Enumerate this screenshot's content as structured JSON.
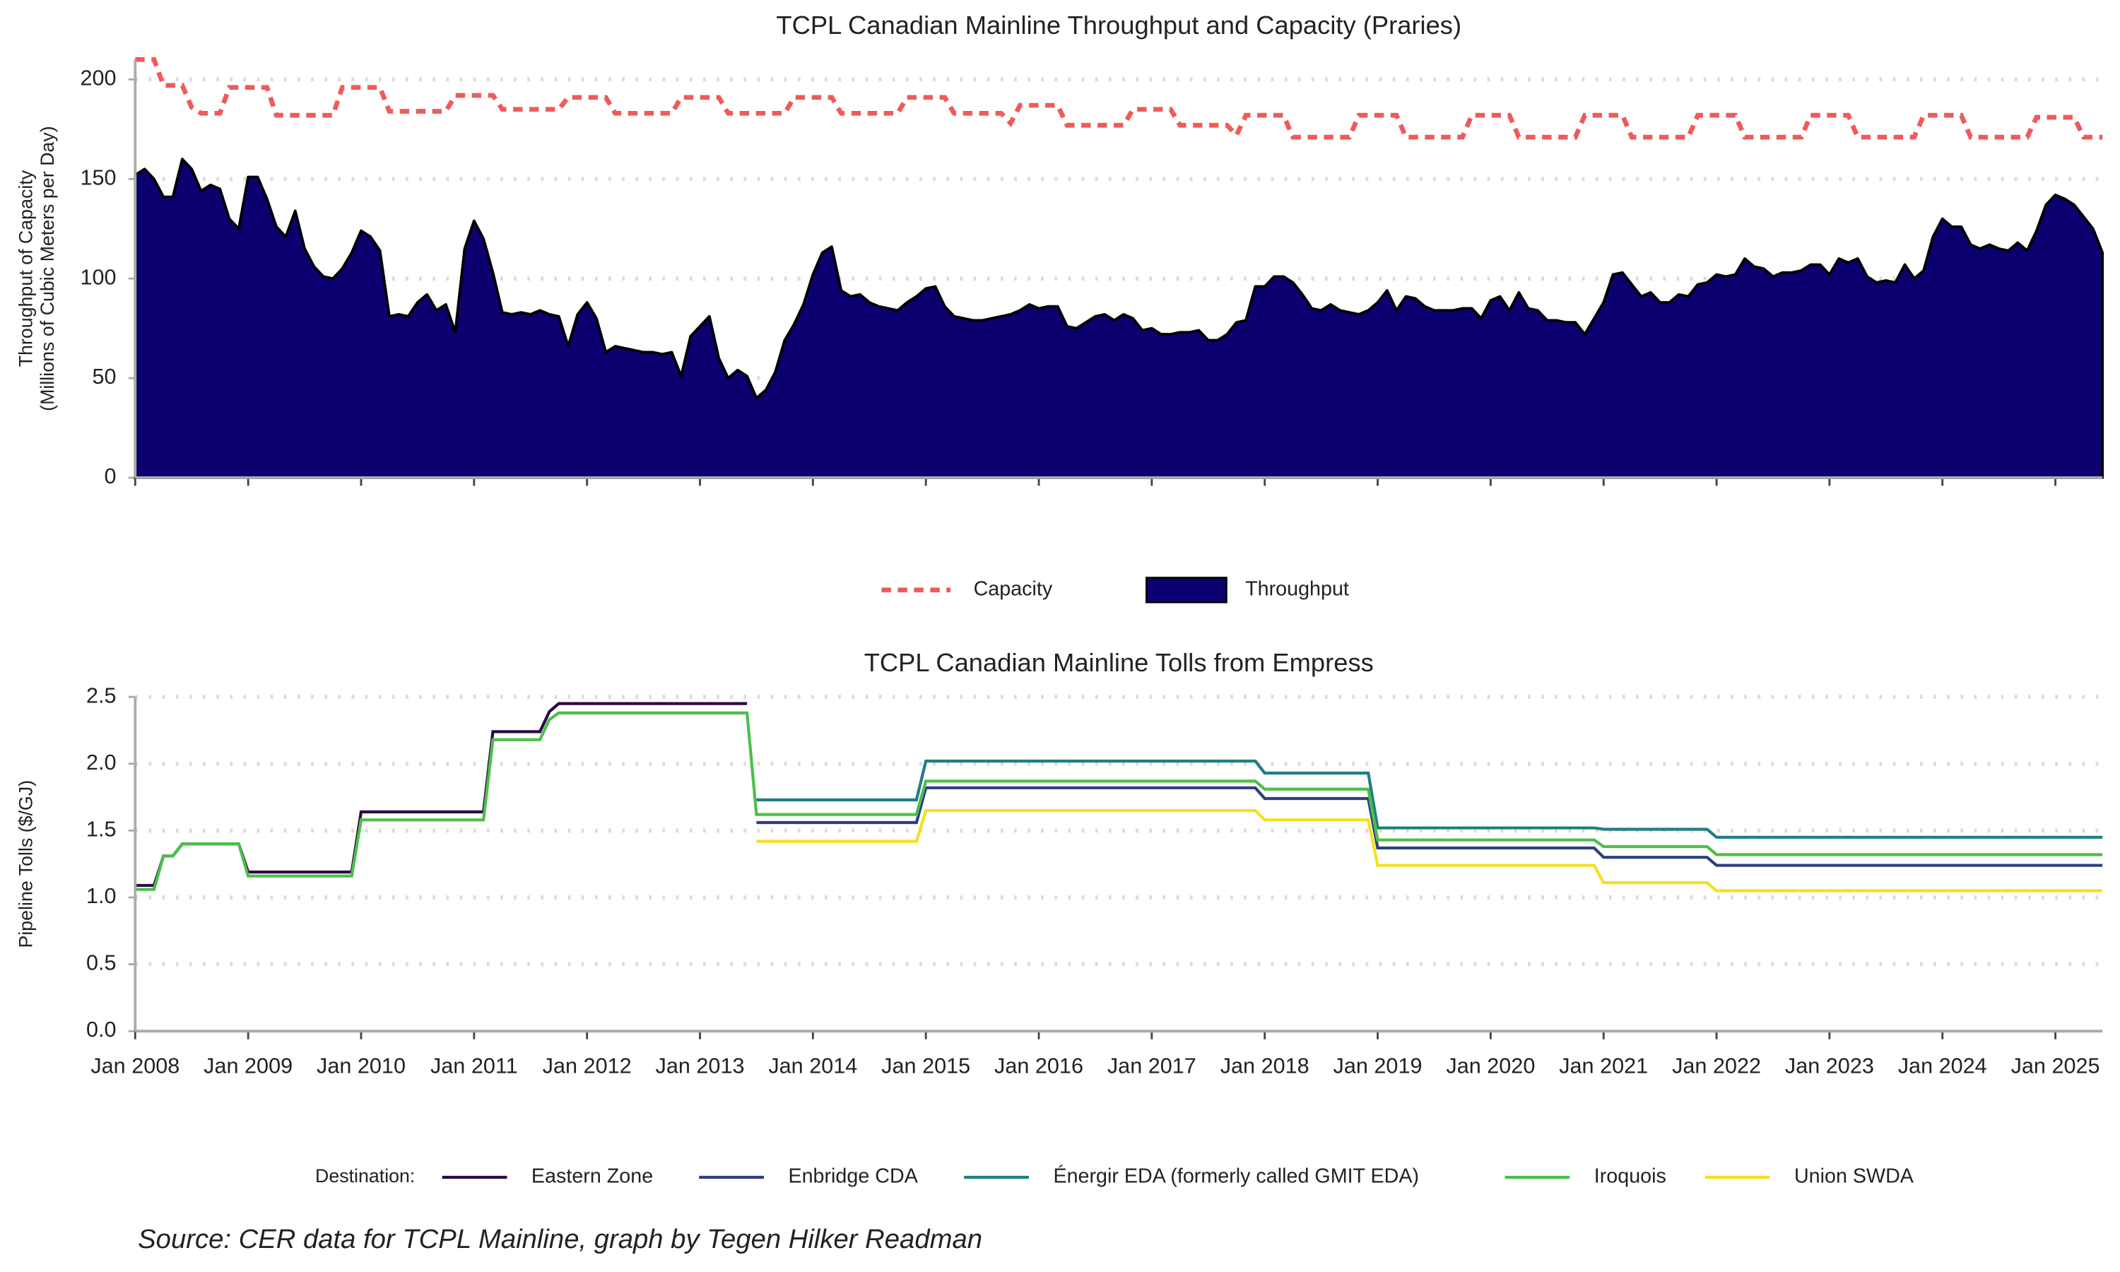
{
  "chart_data": [
    {
      "type": "area",
      "title": "TCPL Canadian Mainline Throughput and Capacity (Praries)",
      "ylabel": [
        "Throughput of Capacity",
        "(Millions of Cubic Meters per Day)"
      ],
      "x": [
        "2008-01",
        "2008-02",
        "2008-03",
        "2008-04",
        "2008-05",
        "2008-06",
        "2008-07",
        "2008-08",
        "2008-09",
        "2008-10",
        "2008-11",
        "2008-12",
        "2009-01",
        "2009-02",
        "2009-03",
        "2009-04",
        "2009-05",
        "2009-06",
        "2009-07",
        "2009-08",
        "2009-09",
        "2009-10",
        "2009-11",
        "2009-12",
        "2010-01",
        "2010-02",
        "2010-03",
        "2010-04",
        "2010-05",
        "2010-06",
        "2010-07",
        "2010-08",
        "2010-09",
        "2010-10",
        "2010-11",
        "2010-12",
        "2011-01",
        "2011-02",
        "2011-03",
        "2011-04",
        "2011-05",
        "2011-06",
        "2011-07",
        "2011-08",
        "2011-09",
        "2011-10",
        "2011-11",
        "2011-12",
        "2012-01",
        "2012-02",
        "2012-03",
        "2012-04",
        "2012-05",
        "2012-06",
        "2012-07",
        "2012-08",
        "2012-09",
        "2012-10",
        "2012-11",
        "2012-12",
        "2013-01",
        "2013-02",
        "2013-03",
        "2013-04",
        "2013-05",
        "2013-06",
        "2013-07",
        "2013-08",
        "2013-09",
        "2013-10",
        "2013-11",
        "2013-12",
        "2014-01",
        "2014-02",
        "2014-03",
        "2014-04",
        "2014-05",
        "2014-06",
        "2014-07",
        "2014-08",
        "2014-09",
        "2014-10",
        "2014-11",
        "2014-12",
        "2015-01",
        "2015-02",
        "2015-03",
        "2015-04",
        "2015-05",
        "2015-06",
        "2015-07",
        "2015-08",
        "2015-09",
        "2015-10",
        "2015-11",
        "2015-12",
        "2016-01",
        "2016-02",
        "2016-03",
        "2016-04",
        "2016-05",
        "2016-06",
        "2016-07",
        "2016-08",
        "2016-09",
        "2016-10",
        "2016-11",
        "2016-12",
        "2017-01",
        "2017-02",
        "2017-03",
        "2017-04",
        "2017-05",
        "2017-06",
        "2017-07",
        "2017-08",
        "2017-09",
        "2017-10",
        "2017-11",
        "2017-12",
        "2018-01",
        "2018-02",
        "2018-03",
        "2018-04",
        "2018-05",
        "2018-06",
        "2018-07",
        "2018-08",
        "2018-09",
        "2018-10",
        "2018-11",
        "2018-12",
        "2019-01",
        "2019-02",
        "2019-03",
        "2019-04",
        "2019-05",
        "2019-06",
        "2019-07",
        "2019-08",
        "2019-09",
        "2019-10",
        "2019-11",
        "2019-12",
        "2020-01",
        "2020-02",
        "2020-03",
        "2020-04",
        "2020-05",
        "2020-06",
        "2020-07",
        "2020-08",
        "2020-09",
        "2020-10",
        "2020-11",
        "2020-12",
        "2021-01",
        "2021-02",
        "2021-03",
        "2021-04",
        "2021-05",
        "2021-06",
        "2021-07",
        "2021-08",
        "2021-09",
        "2021-10",
        "2021-11",
        "2021-12",
        "2022-01",
        "2022-02",
        "2022-03",
        "2022-04",
        "2022-05",
        "2022-06",
        "2022-07",
        "2022-08",
        "2022-09",
        "2022-10",
        "2022-11",
        "2022-12",
        "2023-01",
        "2023-02",
        "2023-03",
        "2023-04",
        "2023-05",
        "2023-06",
        "2023-07",
        "2023-08",
        "2023-09",
        "2023-10",
        "2023-11",
        "2023-12",
        "2024-01",
        "2024-02",
        "2024-03",
        "2024-04",
        "2024-05",
        "2024-06",
        "2024-07",
        "2024-08",
        "2024-09",
        "2024-10",
        "2024-11",
        "2024-12",
        "2025-01",
        "2025-02",
        "2025-03",
        "2025-04",
        "2025-05",
        "2025-06"
      ],
      "series": [
        {
          "name": "Capacity",
          "type": "line",
          "dashed": true,
          "color": "#ef5a5a",
          "values": [
            210,
            210,
            210,
            197,
            197,
            197,
            186,
            183,
            183,
            183,
            196,
            196,
            196,
            196,
            196,
            182,
            182,
            182,
            182,
            182,
            182,
            182,
            196,
            196,
            196,
            196,
            196,
            184,
            184,
            184,
            184,
            184,
            184,
            184,
            192,
            192,
            192,
            192,
            192,
            185,
            185,
            185,
            185,
            185,
            185,
            185,
            191,
            191,
            191,
            191,
            191,
            183,
            183,
            183,
            183,
            183,
            183,
            183,
            191,
            191,
            191,
            191,
            191,
            183,
            183,
            183,
            183,
            183,
            183,
            183,
            191,
            191,
            191,
            191,
            191,
            183,
            183,
            183,
            183,
            183,
            183,
            183,
            191,
            191,
            191,
            191,
            191,
            183,
            183,
            183,
            183,
            183,
            183,
            178,
            187,
            187,
            187,
            187,
            187,
            177,
            177,
            177,
            177,
            177,
            177,
            177,
            185,
            185,
            185,
            185,
            185,
            177,
            177,
            177,
            177,
            177,
            177,
            172,
            182,
            182,
            182,
            182,
            182,
            171,
            171,
            171,
            171,
            171,
            171,
            171,
            182,
            182,
            182,
            182,
            182,
            171,
            171,
            171,
            171,
            171,
            171,
            171,
            182,
            182,
            182,
            182,
            182,
            171,
            171,
            171,
            171,
            171,
            171,
            171,
            182,
            182,
            182,
            182,
            182,
            171,
            171,
            171,
            171,
            171,
            171,
            171,
            182,
            182,
            182,
            182,
            182,
            171,
            171,
            171,
            171,
            171,
            171,
            171,
            182,
            182,
            182,
            182,
            182,
            171,
            171,
            171,
            171,
            171,
            171,
            171,
            182,
            182,
            182,
            182,
            182,
            171,
            171,
            171,
            171,
            171,
            171,
            171,
            181,
            181,
            181,
            181,
            181,
            171,
            171,
            171
          ]
        },
        {
          "name": "Throughput",
          "type": "area",
          "color": "#0c0070",
          "values": [
            152,
            155,
            150,
            141,
            141,
            160,
            155,
            144,
            147,
            145,
            130,
            125,
            151,
            151,
            140,
            126,
            121,
            134,
            115,
            106,
            101,
            100,
            105,
            113,
            124,
            121,
            114,
            81,
            82,
            81,
            88,
            92,
            84,
            87,
            73,
            115,
            129,
            120,
            103,
            83,
            82,
            83,
            82,
            84,
            82,
            81,
            66,
            82,
            88,
            80,
            63,
            66,
            65,
            64,
            63,
            63,
            62,
            63,
            51,
            71,
            76,
            81,
            60,
            50,
            54,
            51,
            40,
            44,
            53,
            69,
            77,
            87,
            102,
            113,
            116,
            94,
            91,
            92,
            88,
            86,
            85,
            84,
            88,
            91,
            95,
            96,
            86,
            81,
            80,
            79,
            79,
            80,
            81,
            82,
            84,
            87,
            85,
            86,
            86,
            76,
            75,
            78,
            81,
            82,
            79,
            82,
            80,
            74,
            75,
            72,
            72,
            73,
            73,
            74,
            69,
            69,
            72,
            78,
            79,
            96,
            96,
            101,
            101,
            98,
            92,
            85,
            84,
            87,
            84,
            83,
            82,
            84,
            88,
            94,
            84,
            91,
            90,
            86,
            84,
            84,
            84,
            85,
            85,
            80,
            89,
            91,
            84,
            93,
            85,
            84,
            79,
            79,
            78,
            78,
            72,
            80,
            88,
            102,
            103,
            97,
            91,
            93,
            88,
            88,
            92,
            91,
            97,
            98,
            102,
            101,
            102,
            110,
            106,
            105,
            101,
            103,
            103,
            104,
            107,
            107,
            102,
            110,
            108,
            110,
            101,
            98,
            99,
            98,
            107,
            100,
            104,
            121,
            130,
            126,
            126,
            117,
            115,
            117,
            115,
            114,
            118,
            114,
            124,
            137,
            142,
            140,
            137,
            131,
            125,
            113
          ]
        }
      ],
      "xlim": [
        "2008-01",
        "2025-06"
      ],
      "xticks": [
        "2008-01",
        "2009-01",
        "2010-01",
        "2011-01",
        "2012-01",
        "2013-01",
        "2014-01",
        "2015-01",
        "2016-01",
        "2017-01",
        "2018-01",
        "2019-01",
        "2020-01",
        "2021-01",
        "2022-01",
        "2023-01",
        "2024-01",
        "2025-01"
      ],
      "ylim": [
        0,
        210
      ],
      "yticks": [
        0,
        50,
        100,
        150,
        200
      ],
      "grid": true,
      "legend": "bottom"
    },
    {
      "type": "line",
      "title": "TCPL Canadian Mainline Tolls from Empress",
      "ylabel": [
        "Pipeline Tolls ($/GJ)"
      ],
      "legend_title": "Destination:",
      "x": [
        "2008-01",
        "2008-03",
        "2008-04",
        "2008-05",
        "2008-06",
        "2008-12",
        "2009-01",
        "2009-12",
        "2010-01",
        "2011-02",
        "2011-03",
        "2011-08",
        "2011-09",
        "2011-10",
        "2013-06",
        "2013-07",
        "2014-12",
        "2015-01",
        "2017-12",
        "2018-01",
        "2018-12",
        "2019-01",
        "2020-12",
        "2021-01",
        "2021-12",
        "2022-01",
        "2025-06"
      ],
      "series": [
        {
          "name": "Eastern Zone",
          "color": "#2d0b45",
          "values": [
            1.09,
            1.09,
            1.31,
            1.31,
            1.4,
            1.4,
            1.19,
            1.19,
            1.64,
            1.64,
            2.24,
            2.24,
            2.39,
            2.45,
            2.45,
            null,
            null,
            null,
            null,
            null,
            null,
            null,
            null,
            null,
            null,
            null,
            null
          ]
        },
        {
          "name": "Enbridge CDA",
          "color": "#2f3f80",
          "values": [
            null,
            null,
            null,
            null,
            null,
            null,
            null,
            null,
            null,
            null,
            null,
            null,
            null,
            null,
            null,
            1.56,
            1.56,
            1.82,
            1.82,
            1.74,
            1.74,
            1.37,
            1.37,
            1.3,
            1.3,
            1.24,
            1.24
          ]
        },
        {
          "name": "Énergir EDA (formerly called GMIT EDA)",
          "color": "#1f7f80",
          "values": [
            null,
            null,
            null,
            null,
            null,
            null,
            null,
            null,
            null,
            null,
            null,
            null,
            null,
            null,
            null,
            1.73,
            1.73,
            2.02,
            2.02,
            1.93,
            1.93,
            1.52,
            1.52,
            1.51,
            1.51,
            1.45,
            1.45
          ]
        },
        {
          "name": "Iroquois",
          "color": "#4cbf4a",
          "values": [
            1.06,
            1.06,
            1.31,
            1.31,
            1.4,
            1.4,
            1.16,
            1.16,
            1.58,
            1.58,
            2.18,
            2.18,
            2.33,
            2.38,
            2.38,
            1.62,
            1.62,
            1.87,
            1.87,
            1.81,
            1.81,
            1.43,
            1.43,
            1.38,
            1.38,
            1.32,
            1.32
          ]
        },
        {
          "name": "Union SWDA",
          "color": "#f5e11e",
          "values": [
            null,
            null,
            null,
            null,
            null,
            null,
            null,
            null,
            null,
            null,
            null,
            null,
            null,
            null,
            null,
            1.42,
            1.42,
            1.65,
            1.65,
            1.58,
            1.58,
            1.24,
            1.24,
            1.11,
            1.11,
            1.05,
            1.05
          ]
        }
      ],
      "xlim": [
        "2008-01",
        "2025-06"
      ],
      "xticks": [
        {
          "value": "2008-01",
          "label": "Jan 2008"
        },
        {
          "value": "2009-01",
          "label": "Jan 2009"
        },
        {
          "value": "2010-01",
          "label": "Jan 2010"
        },
        {
          "value": "2011-01",
          "label": "Jan 2011"
        },
        {
          "value": "2012-01",
          "label": "Jan 2012"
        },
        {
          "value": "2013-01",
          "label": "Jan 2013"
        },
        {
          "value": "2014-01",
          "label": "Jan 2014"
        },
        {
          "value": "2015-01",
          "label": "Jan 2015"
        },
        {
          "value": "2016-01",
          "label": "Jan 2016"
        },
        {
          "value": "2017-01",
          "label": "Jan 2017"
        },
        {
          "value": "2018-01",
          "label": "Jan 2018"
        },
        {
          "value": "2019-01",
          "label": "Jan 2019"
        },
        {
          "value": "2020-01",
          "label": "Jan 2020"
        },
        {
          "value": "2021-01",
          "label": "Jan 2021"
        },
        {
          "value": "2022-01",
          "label": "Jan 2022"
        },
        {
          "value": "2023-01",
          "label": "Jan 2023"
        },
        {
          "value": "2024-01",
          "label": "Jan 2024"
        },
        {
          "value": "2025-01",
          "label": "Jan 2025"
        }
      ],
      "ylim": [
        0,
        2.5
      ],
      "yticks": [
        {
          "value": 0,
          "label": "0.0"
        },
        0.5,
        {
          "value": 1,
          "label": "1.0"
        },
        1.5,
        {
          "value": 2,
          "label": "2.0"
        },
        2.5
      ],
      "grid": true,
      "legend": "bottom"
    }
  ],
  "caption": "Source: CER data for TCPL Mainline, graph by Tegen Hilker Readman"
}
